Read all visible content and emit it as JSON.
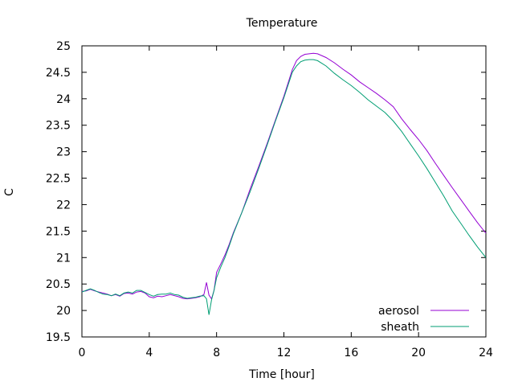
{
  "chart_data": {
    "type": "line",
    "title": "Temperature",
    "xlabel": "Time [hour]",
    "ylabel": "C",
    "xlim": [
      0,
      24
    ],
    "ylim": [
      19.5,
      25
    ],
    "xticks": [
      0,
      4,
      8,
      12,
      16,
      20,
      24
    ],
    "yticks": [
      19.5,
      20,
      20.5,
      21,
      21.5,
      22,
      22.5,
      23,
      23.5,
      24,
      24.5,
      25
    ],
    "grid": false,
    "legend_position": "bottom-right",
    "series": [
      {
        "name": "aerosol",
        "color": "#9400d3",
        "points": [
          [
            0,
            20.36
          ],
          [
            0.25,
            20.37
          ],
          [
            0.5,
            20.4
          ],
          [
            0.75,
            20.37
          ],
          [
            1,
            20.35
          ],
          [
            1.25,
            20.33
          ],
          [
            1.5,
            20.31
          ],
          [
            1.75,
            20.28
          ],
          [
            2,
            20.3
          ],
          [
            2.25,
            20.27
          ],
          [
            2.5,
            20.32
          ],
          [
            2.75,
            20.33
          ],
          [
            3,
            20.31
          ],
          [
            3.25,
            20.35
          ],
          [
            3.5,
            20.36
          ],
          [
            3.75,
            20.33
          ],
          [
            4,
            20.26
          ],
          [
            4.25,
            20.24
          ],
          [
            4.5,
            20.27
          ],
          [
            4.75,
            20.26
          ],
          [
            5,
            20.28
          ],
          [
            5.25,
            20.3
          ],
          [
            5.5,
            20.28
          ],
          [
            5.75,
            20.26
          ],
          [
            6,
            20.23
          ],
          [
            6.25,
            20.22
          ],
          [
            6.5,
            20.23
          ],
          [
            6.75,
            20.24
          ],
          [
            7,
            20.26
          ],
          [
            7.25,
            20.3
          ],
          [
            7.4,
            20.53
          ],
          [
            7.55,
            20.29
          ],
          [
            7.7,
            20.22
          ],
          [
            7.85,
            20.38
          ],
          [
            8,
            20.72
          ],
          [
            8.25,
            20.88
          ],
          [
            8.5,
            21.05
          ],
          [
            8.75,
            21.25
          ],
          [
            9,
            21.47
          ],
          [
            9.5,
            21.85
          ],
          [
            10,
            22.3
          ],
          [
            10.5,
            22.72
          ],
          [
            11,
            23.15
          ],
          [
            11.5,
            23.6
          ],
          [
            12,
            24.05
          ],
          [
            12.5,
            24.55
          ],
          [
            12.75,
            24.72
          ],
          [
            13,
            24.8
          ],
          [
            13.25,
            24.84
          ],
          [
            13.5,
            24.85
          ],
          [
            13.75,
            24.86
          ],
          [
            14,
            24.85
          ],
          [
            14.5,
            24.78
          ],
          [
            15,
            24.68
          ],
          [
            15.5,
            24.56
          ],
          [
            16,
            24.45
          ],
          [
            16.5,
            24.32
          ],
          [
            17,
            24.21
          ],
          [
            17.5,
            24.1
          ],
          [
            18,
            23.98
          ],
          [
            18.5,
            23.85
          ],
          [
            19,
            23.62
          ],
          [
            19.5,
            23.42
          ],
          [
            20,
            23.23
          ],
          [
            20.5,
            23.02
          ],
          [
            21,
            22.78
          ],
          [
            21.5,
            22.55
          ],
          [
            22,
            22.32
          ],
          [
            22.5,
            22.1
          ],
          [
            23,
            21.88
          ],
          [
            23.5,
            21.66
          ],
          [
            24,
            21.46
          ]
        ]
      },
      {
        "name": "sheath",
        "color": "#009e73",
        "points": [
          [
            0,
            20.35
          ],
          [
            0.25,
            20.38
          ],
          [
            0.5,
            20.41
          ],
          [
            0.75,
            20.38
          ],
          [
            1,
            20.34
          ],
          [
            1.25,
            20.31
          ],
          [
            1.5,
            20.3
          ],
          [
            1.75,
            20.28
          ],
          [
            2,
            20.31
          ],
          [
            2.25,
            20.28
          ],
          [
            2.5,
            20.33
          ],
          [
            2.75,
            20.35
          ],
          [
            3,
            20.33
          ],
          [
            3.25,
            20.38
          ],
          [
            3.5,
            20.38
          ],
          [
            3.75,
            20.34
          ],
          [
            4,
            20.3
          ],
          [
            4.25,
            20.27
          ],
          [
            4.5,
            20.3
          ],
          [
            4.75,
            20.31
          ],
          [
            5,
            20.31
          ],
          [
            5.25,
            20.33
          ],
          [
            5.5,
            20.3
          ],
          [
            5.75,
            20.29
          ],
          [
            6,
            20.25
          ],
          [
            6.25,
            20.23
          ],
          [
            6.5,
            20.24
          ],
          [
            6.75,
            20.25
          ],
          [
            7,
            20.27
          ],
          [
            7.25,
            20.28
          ],
          [
            7.4,
            20.22
          ],
          [
            7.55,
            19.92
          ],
          [
            7.7,
            20.2
          ],
          [
            7.85,
            20.38
          ],
          [
            8,
            20.62
          ],
          [
            8.25,
            20.82
          ],
          [
            8.5,
            21.0
          ],
          [
            8.75,
            21.22
          ],
          [
            9,
            21.45
          ],
          [
            9.5,
            21.85
          ],
          [
            10,
            22.25
          ],
          [
            10.5,
            22.68
          ],
          [
            11,
            23.12
          ],
          [
            11.5,
            23.58
          ],
          [
            12,
            24.02
          ],
          [
            12.5,
            24.5
          ],
          [
            12.75,
            24.62
          ],
          [
            13,
            24.7
          ],
          [
            13.25,
            24.73
          ],
          [
            13.5,
            24.74
          ],
          [
            13.75,
            24.74
          ],
          [
            14,
            24.72
          ],
          [
            14.5,
            24.62
          ],
          [
            15,
            24.48
          ],
          [
            15.5,
            24.36
          ],
          [
            16,
            24.25
          ],
          [
            16.5,
            24.12
          ],
          [
            17,
            23.98
          ],
          [
            17.5,
            23.86
          ],
          [
            18,
            23.74
          ],
          [
            18.5,
            23.58
          ],
          [
            19,
            23.38
          ],
          [
            19.5,
            23.15
          ],
          [
            20,
            22.92
          ],
          [
            20.5,
            22.68
          ],
          [
            21,
            22.42
          ],
          [
            21.5,
            22.16
          ],
          [
            22,
            21.88
          ],
          [
            22.5,
            21.65
          ],
          [
            23,
            21.42
          ],
          [
            23.5,
            21.2
          ],
          [
            24,
            21.0
          ]
        ]
      }
    ]
  }
}
